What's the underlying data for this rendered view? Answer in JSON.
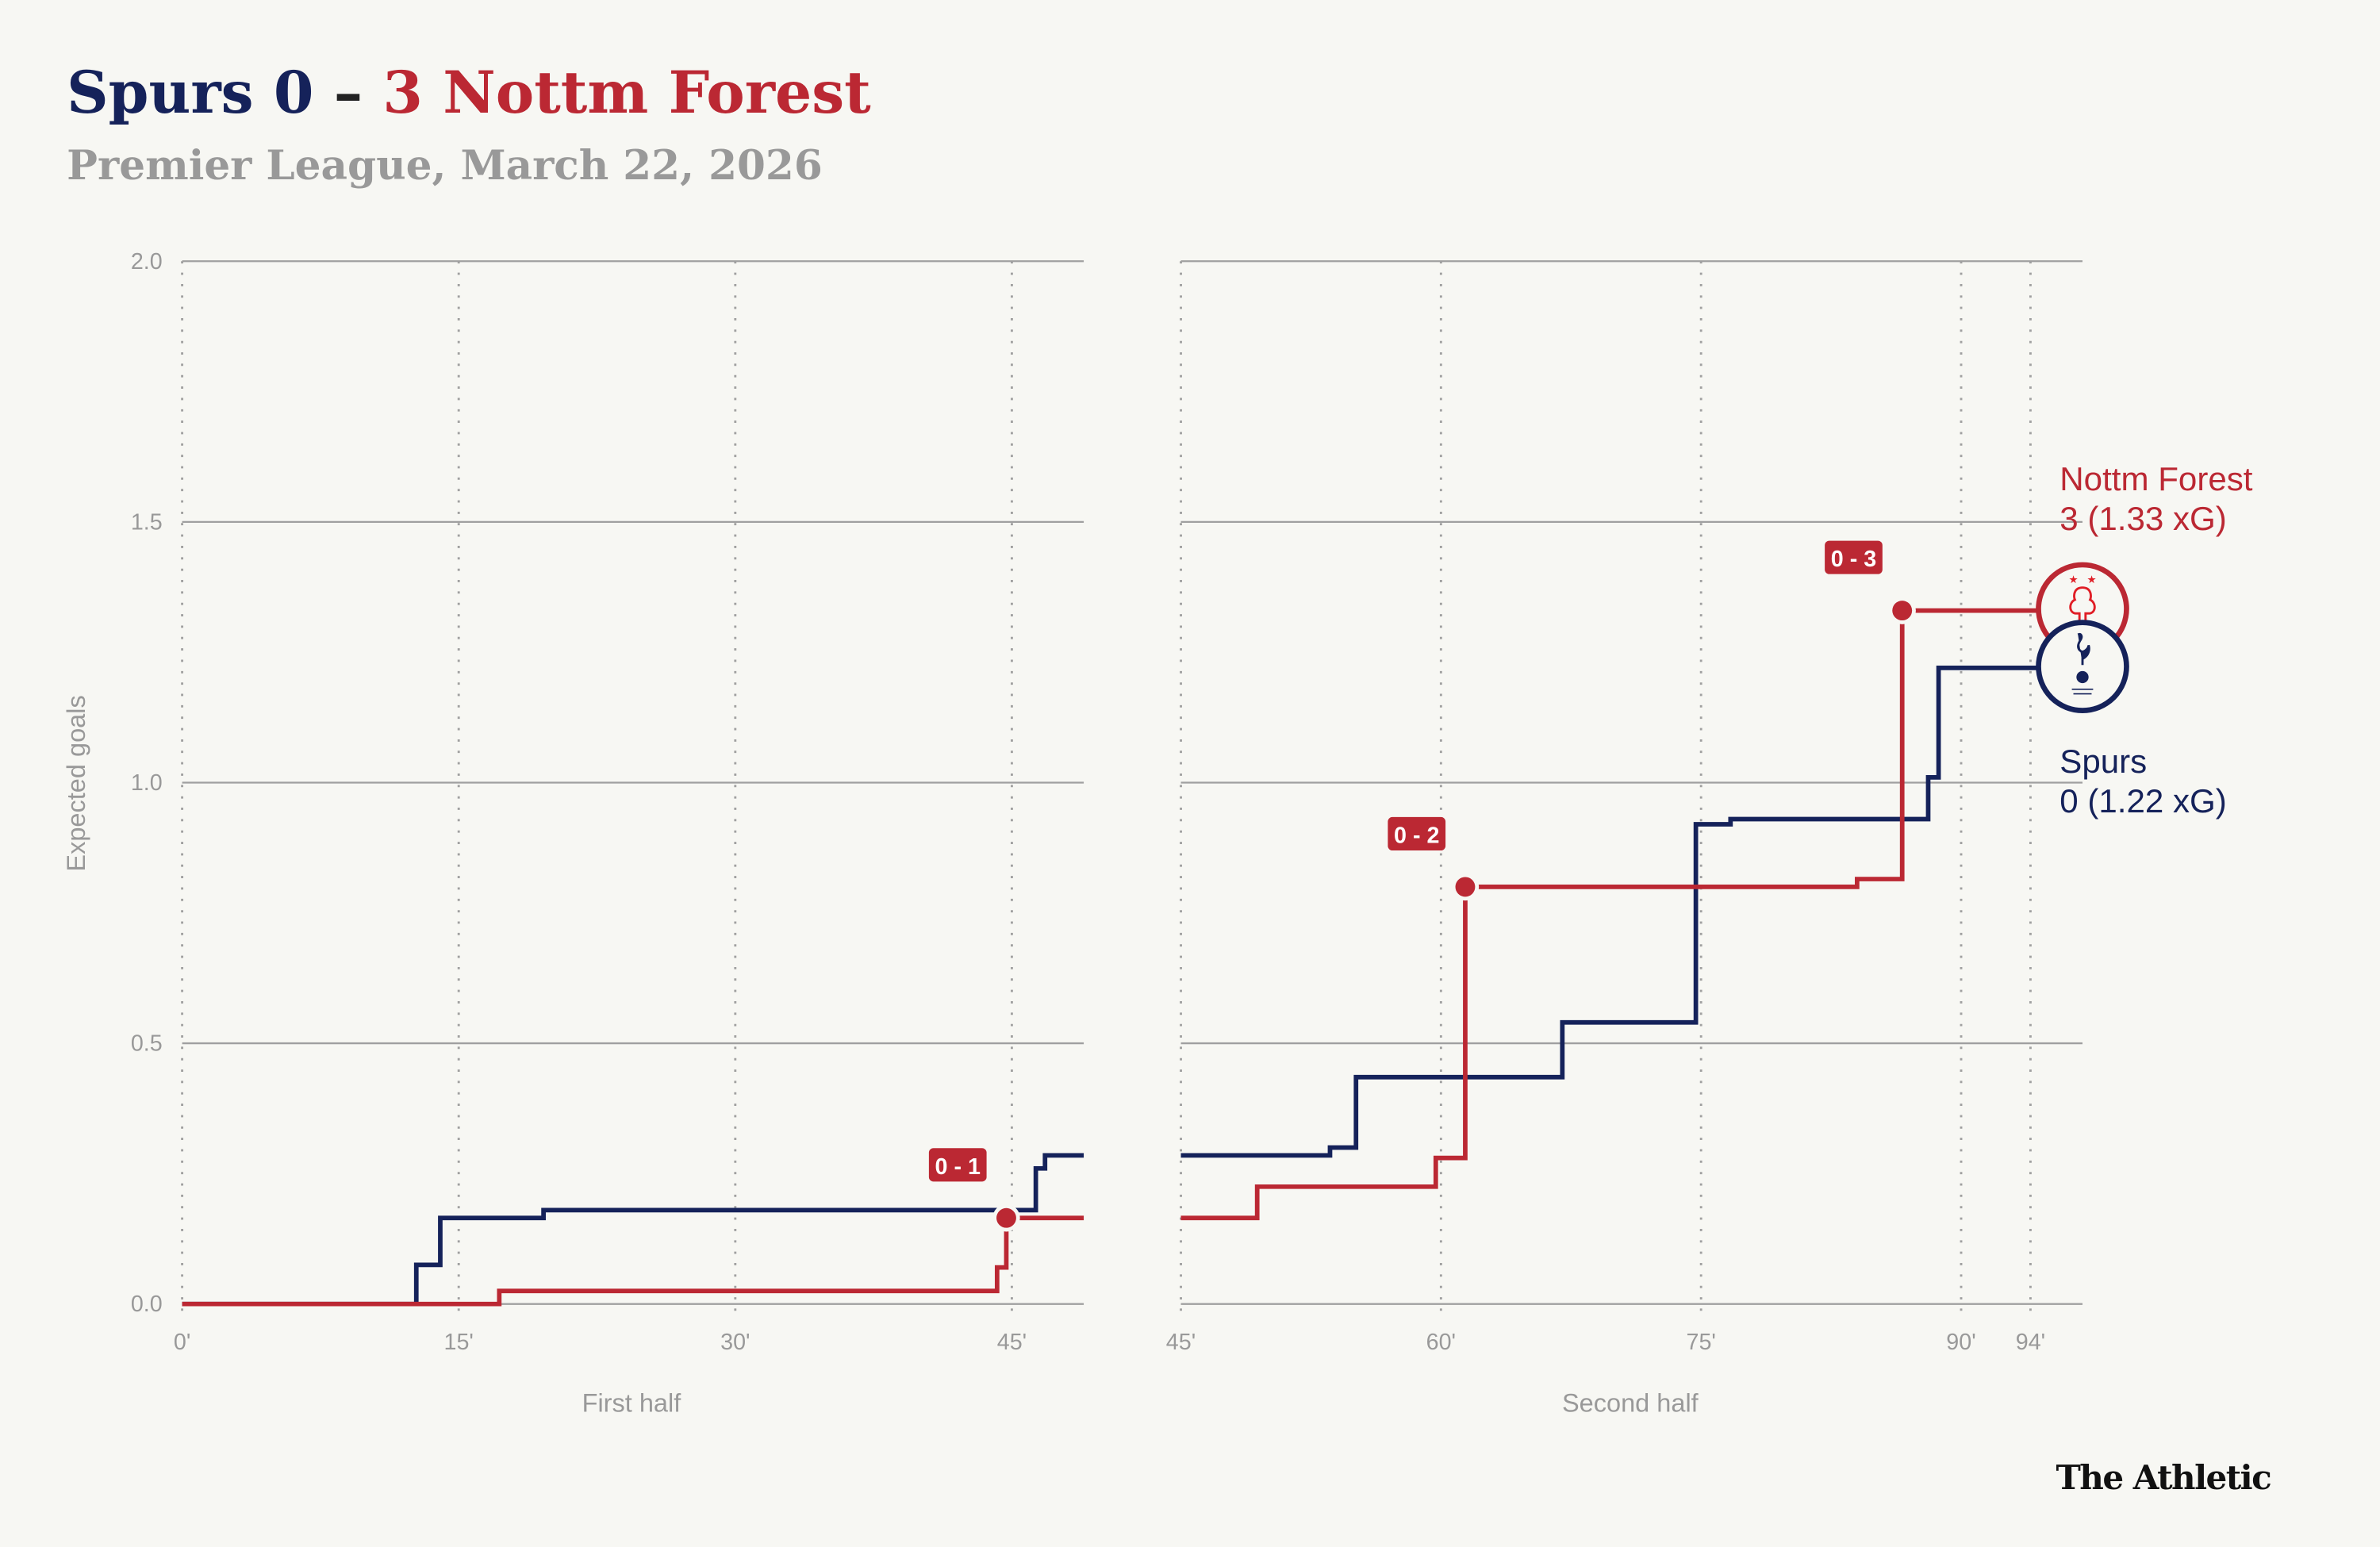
{
  "header": {
    "home_team": "Spurs 0",
    "dash": "–",
    "away_team": "3 Nottm Forest",
    "subtitle": "Premier League, March 22, 2026"
  },
  "colors": {
    "spurs": "#15225A",
    "forest": "#BB2833",
    "grid": "#A0A0A0",
    "text_muted": "#999999",
    "background": "#F7F7F3"
  },
  "chart_data": {
    "type": "line",
    "step": true,
    "ylabel": "Expected goals",
    "ylim": [
      0,
      2.0
    ],
    "yticks": [
      "0.0",
      "0.5",
      "1.0",
      "1.5",
      "2.0"
    ],
    "grid": true,
    "panels": [
      {
        "label": "First half",
        "xlim": [
          0,
          48.9
        ],
        "xticks": [
          0,
          15,
          30,
          45
        ],
        "xtick_labels": [
          "0'",
          "15'",
          "30'",
          "45'"
        ]
      },
      {
        "label": "Second half",
        "xlim": [
          45,
          97
        ],
        "xticks": [
          45,
          60,
          75,
          90,
          94
        ],
        "xtick_labels": [
          "45'",
          "60'",
          "75'",
          "90'",
          "94'"
        ]
      }
    ],
    "series": [
      {
        "name": "Spurs",
        "end_label": "0 (1.22 xG)",
        "crest": "tottenham-crest",
        "first_half": [
          [
            0,
            0
          ],
          [
            12.7,
            0.075
          ],
          [
            14,
            0.165
          ],
          [
            19.6,
            0.18
          ],
          [
            46.3,
            0.26
          ],
          [
            46.8,
            0.285
          ],
          [
            48.9,
            0.285
          ]
        ],
        "second_half": [
          [
            45,
            0.285
          ],
          [
            53.6,
            0.3
          ],
          [
            55.1,
            0.435
          ],
          [
            67,
            0.54
          ],
          [
            74.7,
            0.92
          ],
          [
            76.7,
            0.93
          ],
          [
            88.1,
            1.01
          ],
          [
            88.7,
            1.22
          ],
          [
            94,
            1.22
          ]
        ]
      },
      {
        "name": "Nottm Forest",
        "end_label": "3 (1.33 xG)",
        "crest": "nottingham-forest-crest",
        "first_half": [
          [
            0,
            0
          ],
          [
            17.2,
            0.025
          ],
          [
            44.2,
            0.07
          ],
          [
            44.7,
            0.165
          ],
          [
            48.9,
            0.165
          ]
        ],
        "second_half": [
          [
            45,
            0.165
          ],
          [
            49.4,
            0.225
          ],
          [
            59.7,
            0.28
          ],
          [
            61.4,
            0.8
          ],
          [
            84,
            0.815
          ],
          [
            86.6,
            1.33
          ],
          [
            94,
            1.33
          ]
        ]
      }
    ],
    "goals": [
      {
        "team": "Nottm Forest",
        "half": 0,
        "minute": 44.7,
        "xg": 0.165,
        "label": "0 - 1"
      },
      {
        "team": "Nottm Forest",
        "half": 1,
        "minute": 61.4,
        "xg": 0.8,
        "label": "0 - 2"
      },
      {
        "team": "Nottm Forest",
        "half": 1,
        "minute": 86.6,
        "xg": 1.33,
        "label": "0 - 3"
      }
    ]
  },
  "footer": {
    "brand": "The Athletic"
  }
}
